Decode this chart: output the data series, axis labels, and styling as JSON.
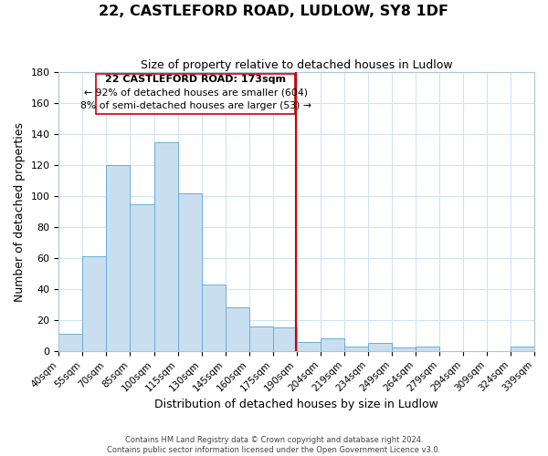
{
  "title": "22, CASTLEFORD ROAD, LUDLOW, SY8 1DF",
  "subtitle": "Size of property relative to detached houses in Ludlow",
  "xlabel": "Distribution of detached houses by size in Ludlow",
  "ylabel": "Number of detached properties",
  "footer_line1": "Contains HM Land Registry data © Crown copyright and database right 2024.",
  "footer_line2": "Contains public sector information licensed under the Open Government Licence v3.0.",
  "bin_labels": [
    "40sqm",
    "55sqm",
    "70sqm",
    "85sqm",
    "100sqm",
    "115sqm",
    "130sqm",
    "145sqm",
    "160sqm",
    "175sqm",
    "190sqm",
    "204sqm",
    "219sqm",
    "234sqm",
    "249sqm",
    "264sqm",
    "279sqm",
    "294sqm",
    "309sqm",
    "324sqm",
    "339sqm"
  ],
  "bar_heights": [
    11,
    61,
    120,
    95,
    135,
    102,
    43,
    28,
    16,
    15,
    6,
    8,
    3,
    5,
    2,
    3,
    0,
    0,
    0,
    3
  ],
  "bar_color": "#c9dff0",
  "bar_edge_color": "#6aaed6",
  "grid_color": "#d0e4f0",
  "vline_color": "#cc0000",
  "vline_x_index": 9.475,
  "annotation_title": "22 CASTLEFORD ROAD: 173sqm",
  "annotation_line1": "← 92% of detached houses are smaller (604)",
  "annotation_line2": "8% of semi-detached houses are larger (53) →",
  "annotation_box_color": "#ffffff",
  "annotation_box_edge": "#cc0000",
  "ylim": [
    0,
    180
  ],
  "yticks": [
    0,
    20,
    40,
    60,
    80,
    100,
    120,
    140,
    160,
    180
  ]
}
